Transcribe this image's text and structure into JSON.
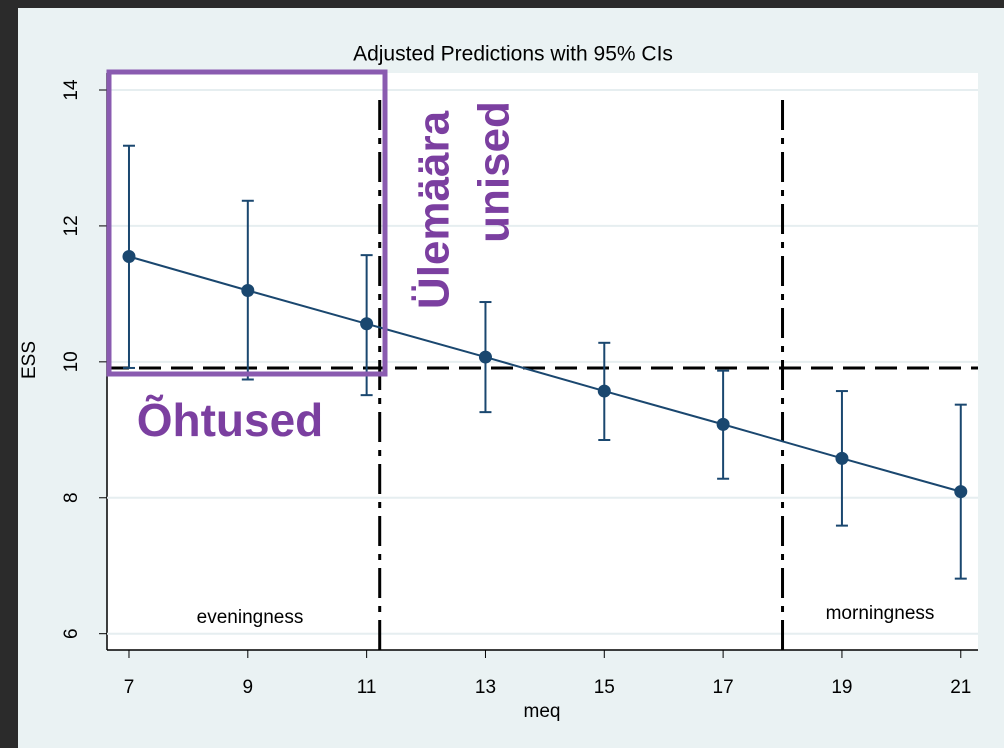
{
  "chart_data": {
    "type": "line",
    "title": "Adjusted Predictions with 95% CIs",
    "x_label": "meq",
    "y_label": "ESS",
    "x": [
      7,
      9,
      11,
      13,
      15,
      17,
      19,
      21
    ],
    "values": [
      11.55,
      11.05,
      10.56,
      10.07,
      9.57,
      9.08,
      8.58,
      8.09
    ],
    "ci_lower": [
      9.91,
      9.74,
      9.51,
      9.26,
      8.85,
      8.28,
      7.59,
      6.81
    ],
    "ci_upper": [
      13.18,
      12.37,
      11.57,
      10.88,
      10.28,
      9.87,
      9.57,
      9.37
    ],
    "color": "#1a476f",
    "xlim": [
      6.63,
      21.29
    ],
    "ylim": [
      5.76,
      14.25
    ],
    "xticks": [
      7,
      9,
      11,
      13,
      15,
      17,
      19,
      21
    ],
    "yticks": [
      6,
      8,
      10,
      12,
      14
    ],
    "grid": true,
    "hlines": [
      9.91
    ],
    "vlines": [
      11.22,
      18
    ],
    "annotations": [
      "eveningness",
      "morningness",
      "Õhtused",
      "Ülemäära",
      "unised"
    ]
  }
}
